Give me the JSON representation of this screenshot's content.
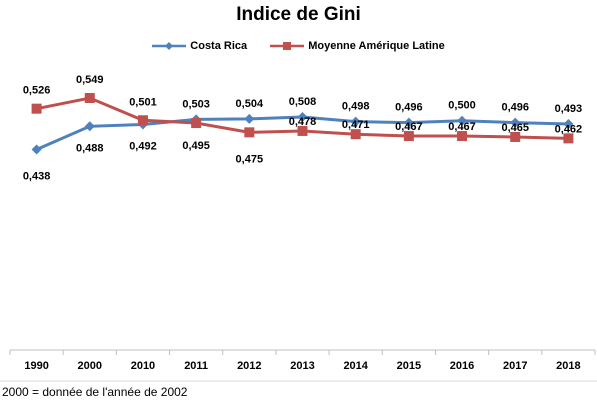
{
  "chart_data": {
    "type": "line",
    "title": "Indice de Gini",
    "categories": [
      "1990",
      "2000",
      "2010",
      "2011",
      "2012",
      "2013",
      "2014",
      "2015",
      "2016",
      "2017",
      "2018"
    ],
    "series": [
      {
        "name": "Costa Rica",
        "color": "#4f81bd",
        "marker": "diamond",
        "values": [
          0.438,
          0.488,
          0.492,
          0.503,
          0.504,
          0.508,
          0.498,
          0.496,
          0.5,
          0.496,
          0.493
        ],
        "labels": [
          "0,438",
          "0,488",
          "0,492",
          "0,503",
          "0,504",
          "0,508",
          "0,498",
          "0,496",
          "0,500",
          "0,496",
          "0,493"
        ]
      },
      {
        "name": "Moyenne Amérique Latine",
        "color": "#c0504d",
        "marker": "square",
        "values": [
          0.526,
          0.549,
          0.501,
          0.495,
          0.475,
          0.478,
          0.471,
          0.467,
          0.467,
          0.465,
          0.462
        ],
        "labels": [
          "0,526",
          "0,549",
          "0,501",
          "0,495",
          "0,475",
          "0,478",
          "0,471",
          "0,467",
          "0,467",
          "0,465",
          "0,462"
        ]
      }
    ],
    "legend_position": "top",
    "grid": false
  },
  "footnote": "2000 = donnée de l'année de 2002"
}
